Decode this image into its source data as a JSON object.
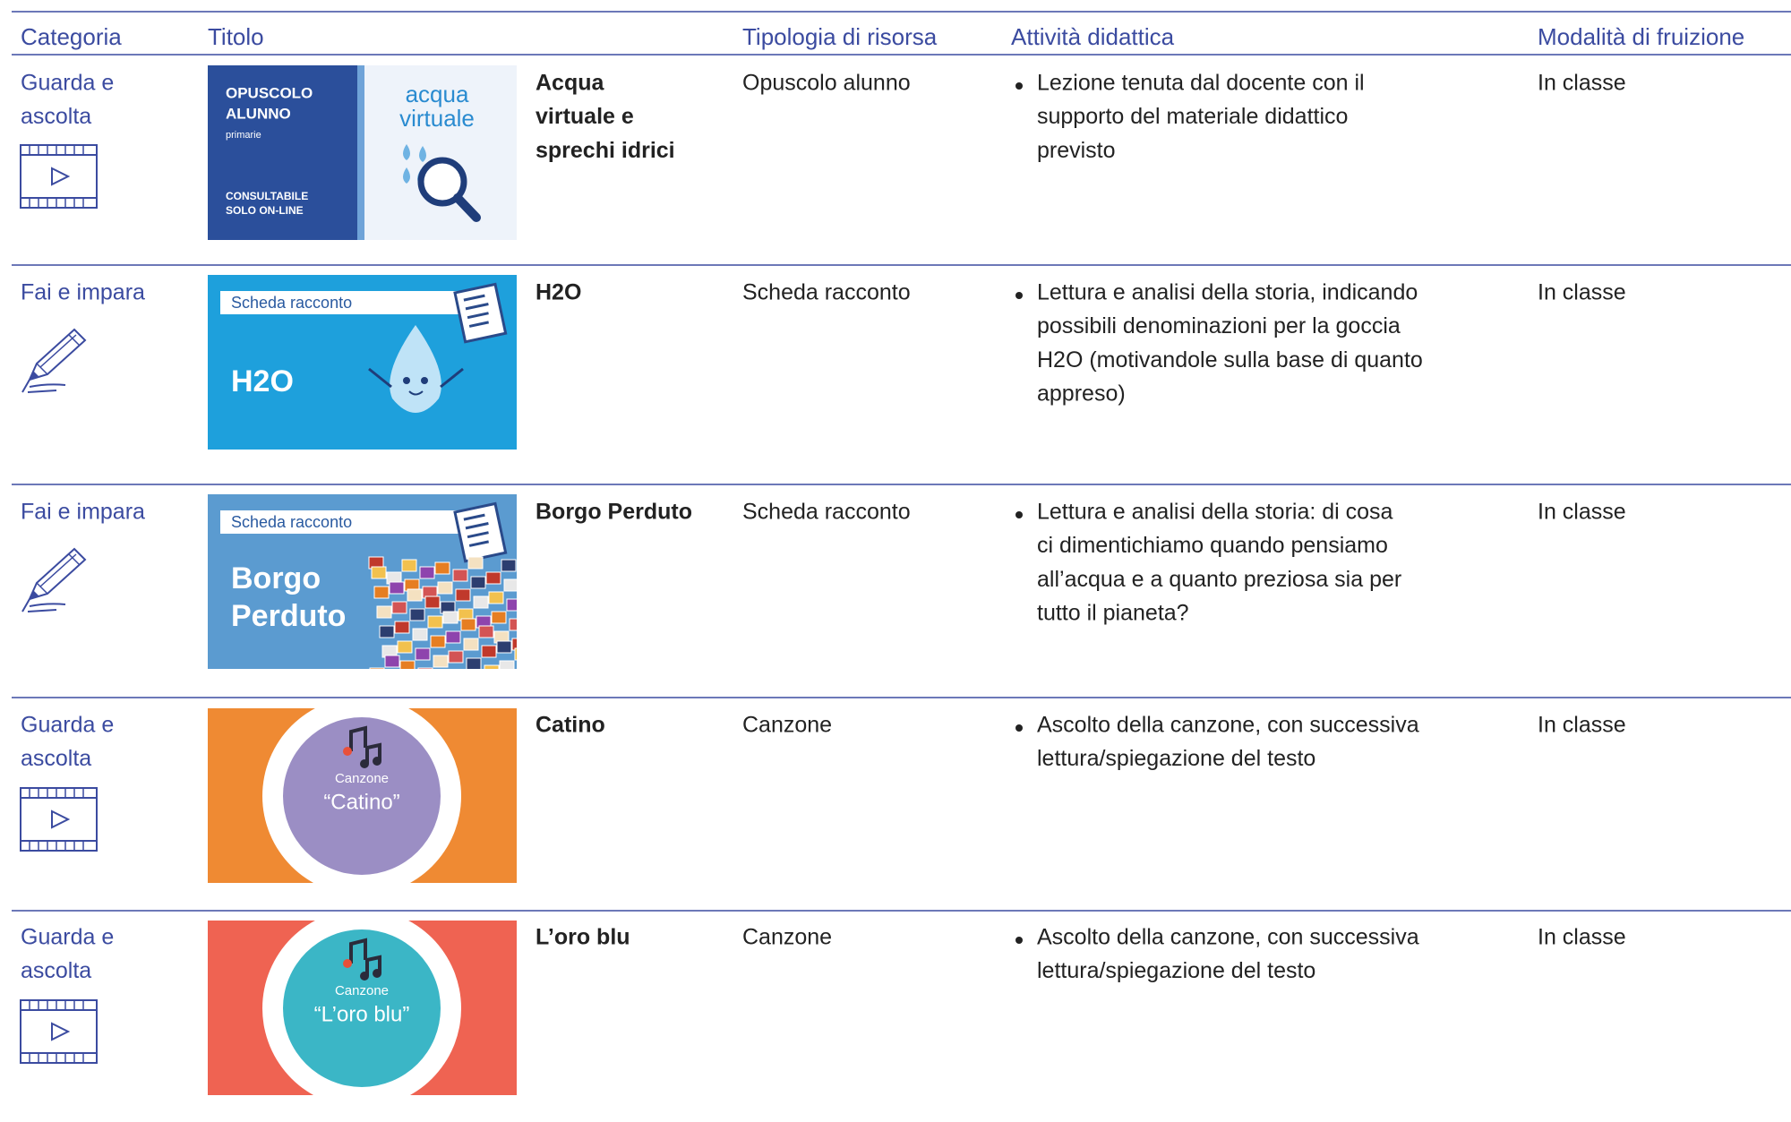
{
  "header": {
    "columns": [
      "Categoria",
      "Titolo",
      "Tipologia di risorsa",
      "Attività didattica",
      "Modalità di fruizione"
    ]
  },
  "table": {
    "rows": [
      {
        "category": [
          "Guarda e",
          "ascolta"
        ],
        "thumbnail": [
          "OPUSCOLO",
          "ALUNNO",
          "primarie",
          "CONSULTABILE",
          "SOLO ON-LINE",
          "acqua",
          "virtuale"
        ],
        "title": [
          "Acqua",
          "virtuale e",
          "sprechi idrici"
        ],
        "type": "Opuscolo alunno",
        "activity": [
          "Lezione tenuta dal docente con il",
          "supporto del materiale didattico",
          "previsto"
        ],
        "mode": "In classe"
      },
      {
        "category": [
          "Fai e impara"
        ],
        "thumbnail": [
          "Scheda racconto",
          "H2O"
        ],
        "title": [
          "H2O"
        ],
        "type": "Scheda racconto",
        "activity": [
          "Lettura e analisi della storia, indicando",
          "possibili denominazioni per la goccia",
          "H2O (motivandole sulla base di quanto",
          "appreso)"
        ],
        "mode": "In classe"
      },
      {
        "category": [
          "Fai e impara"
        ],
        "thumbnail": [
          "Scheda racconto",
          "Borgo",
          "Perduto"
        ],
        "title": [
          "Borgo Perduto"
        ],
        "type": "Scheda racconto",
        "activity": [
          "Lettura e analisi della storia: di cosa",
          "ci dimentichiamo quando pensiamo",
          "all’acqua e a quanto preziosa sia per",
          "tutto il pianeta?"
        ],
        "mode": "In classe"
      },
      {
        "category": [
          "Guarda e",
          "ascolta"
        ],
        "thumbnail": [
          "Canzone",
          "“Catino”"
        ],
        "title": [
          "Catino"
        ],
        "type": "Canzone",
        "activity": [
          "Ascolto della canzone, con successiva",
          "lettura/spiegazione del testo"
        ],
        "mode": "In classe"
      },
      {
        "category": [
          "Guarda e",
          "ascolta"
        ],
        "thumbnail": [
          "Canzone",
          "“L’oro blu”"
        ],
        "title": [
          "L’oro blu"
        ],
        "type": "Canzone",
        "activity": [
          "Ascolto della canzone, con successiva",
          "lettura/spiegazione del testo"
        ],
        "mode": "In classe"
      }
    ]
  }
}
